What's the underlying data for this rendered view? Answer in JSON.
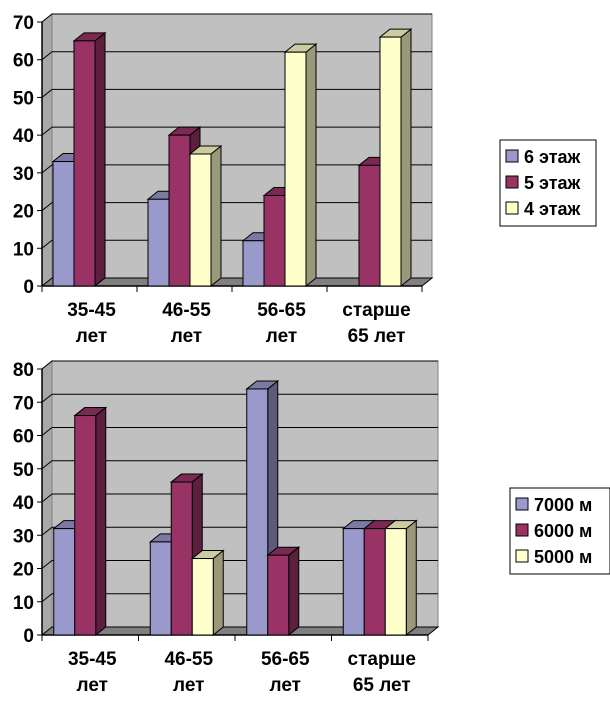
{
  "chart_data": [
    {
      "type": "bar",
      "categories": [
        [
          "35-45",
          "лет"
        ],
        [
          "46-55",
          "лет"
        ],
        [
          "56-65",
          "лет"
        ],
        [
          "старше",
          "65 лет"
        ]
      ],
      "series": [
        {
          "name": "6 этаж",
          "values": [
            33,
            23,
            12,
            null
          ],
          "color": "#9999cc"
        },
        {
          "name": "5 этаж",
          "values": [
            65,
            40,
            24,
            32
          ],
          "color": "#993366"
        },
        {
          "name": "4 этаж",
          "values": [
            null,
            35,
            62,
            66
          ],
          "color": "#ffffcc"
        }
      ],
      "ylim": [
        0,
        70
      ],
      "yticks": [
        0,
        10,
        20,
        30,
        40,
        50,
        60,
        70
      ],
      "grid": true,
      "legend": "right",
      "plot_background": "#c0c0c0"
    },
    {
      "type": "bar",
      "categories": [
        [
          "35-45",
          "лет"
        ],
        [
          "46-55",
          "лет"
        ],
        [
          "56-65",
          "лет"
        ],
        [
          "старше",
          "65 лет"
        ]
      ],
      "series": [
        {
          "name": "7000 м",
          "values": [
            32,
            28,
            74,
            32
          ],
          "color": "#9999cc"
        },
        {
          "name": "6000 м",
          "values": [
            66,
            46,
            24,
            32
          ],
          "color": "#993366"
        },
        {
          "name": "5000 м",
          "values": [
            null,
            23,
            null,
            32
          ],
          "color": "#ffffcc"
        }
      ],
      "ylim": [
        0,
        80
      ],
      "yticks": [
        0,
        10,
        20,
        30,
        40,
        50,
        60,
        70,
        80
      ],
      "grid": true,
      "legend": "right",
      "plot_background": "#c0c0c0"
    }
  ]
}
